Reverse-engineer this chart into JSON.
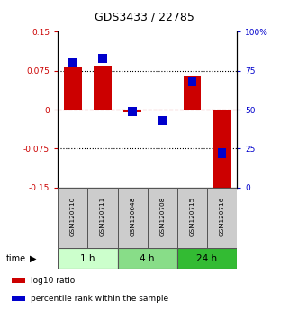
{
  "title": "GDS3433 / 22785",
  "samples": [
    "GSM120710",
    "GSM120711",
    "GSM120648",
    "GSM120708",
    "GSM120715",
    "GSM120716"
  ],
  "log10_ratio": [
    0.082,
    0.083,
    -0.005,
    -0.002,
    0.065,
    -0.162
  ],
  "percentile_rank": [
    80,
    83,
    49,
    43,
    68,
    22
  ],
  "bar_color": "#cc0000",
  "square_color": "#0000cc",
  "ylim_left": [
    -0.15,
    0.15
  ],
  "ylim_right": [
    0,
    100
  ],
  "yticks_left": [
    -0.15,
    -0.075,
    0,
    0.075,
    0.15
  ],
  "yticks_right": [
    0,
    25,
    50,
    75,
    100
  ],
  "ytick_labels_left": [
    "-0.15",
    "-0.075",
    "0",
    "0.075",
    "0.15"
  ],
  "ytick_labels_right": [
    "0",
    "25",
    "50",
    "75",
    "100%"
  ],
  "hlines": [
    0.075,
    -0.075
  ],
  "hline_zero_color": "#cc0000",
  "hline_dotted_color": "#000000",
  "time_groups": [
    {
      "label": "1 h",
      "start": 0,
      "end": 2,
      "color": "#ccffcc"
    },
    {
      "label": "4 h",
      "start": 2,
      "end": 4,
      "color": "#88dd88"
    },
    {
      "label": "24 h",
      "start": 4,
      "end": 6,
      "color": "#33bb33"
    }
  ],
  "time_label": "time",
  "legend_entries": [
    {
      "label": "log10 ratio",
      "color": "#cc0000"
    },
    {
      "label": "percentile rank within the sample",
      "color": "#0000cc"
    }
  ],
  "bar_width": 0.6,
  "background_color": "#ffffff",
  "plot_bg": "#ffffff",
  "label_area_color": "#cccccc"
}
